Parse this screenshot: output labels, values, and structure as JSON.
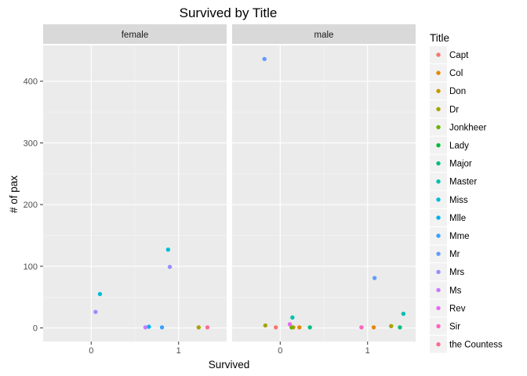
{
  "chart_data": {
    "type": "scatter",
    "title": "Survived by Title",
    "xlabel": "Survived",
    "ylabel": "# of pax",
    "xlim": [
      -0.55,
      1.55
    ],
    "ylim": [
      -22,
      458
    ],
    "x_ticks": [
      0,
      1
    ],
    "y_ticks": [
      0,
      100,
      200,
      300,
      400
    ],
    "grid": true,
    "facet_by": "sex",
    "facets": [
      "female",
      "male"
    ],
    "legend": {
      "title": "Title",
      "position": "right"
    },
    "series": [
      {
        "name": "Capt",
        "color": "#F8766D",
        "points": [
          {
            "facet": "male",
            "x": -0.05,
            "y": 1
          }
        ]
      },
      {
        "name": "Col",
        "color": "#E58700",
        "points": [
          {
            "facet": "male",
            "x": 0.22,
            "y": 1
          },
          {
            "facet": "male",
            "x": 1.07,
            "y": 1
          }
        ]
      },
      {
        "name": "Don",
        "color": "#C99800",
        "points": [
          {
            "facet": "male",
            "x": 0.15,
            "y": 1
          }
        ]
      },
      {
        "name": "Dr",
        "color": "#A3A500",
        "points": [
          {
            "facet": "female",
            "x": 1.23,
            "y": 1
          },
          {
            "facet": "male",
            "x": -0.17,
            "y": 4
          },
          {
            "facet": "male",
            "x": 1.27,
            "y": 3
          }
        ]
      },
      {
        "name": "Jonkheer",
        "color": "#6BB100",
        "points": [
          {
            "facet": "male",
            "x": 0.13,
            "y": 1
          }
        ]
      },
      {
        "name": "Lady",
        "color": "#00BA38",
        "points": []
      },
      {
        "name": "Major",
        "color": "#00BF7D",
        "points": [
          {
            "facet": "male",
            "x": 0.34,
            "y": 1
          },
          {
            "facet": "male",
            "x": 1.37,
            "y": 1
          }
        ]
      },
      {
        "name": "Master",
        "color": "#00C0AF",
        "points": [
          {
            "facet": "male",
            "x": 0.14,
            "y": 17
          },
          {
            "facet": "male",
            "x": 1.41,
            "y": 23
          }
        ]
      },
      {
        "name": "Miss",
        "color": "#00BCD8",
        "points": [
          {
            "facet": "female",
            "x": 0.1,
            "y": 55
          },
          {
            "facet": "female",
            "x": 0.88,
            "y": 127
          }
        ]
      },
      {
        "name": "Mlle",
        "color": "#00B0F6",
        "points": [
          {
            "facet": "female",
            "x": 0.66,
            "y": 2
          }
        ]
      },
      {
        "name": "Mme",
        "color": "#35A2FF",
        "points": [
          {
            "facet": "female",
            "x": 0.81,
            "y": 1
          }
        ]
      },
      {
        "name": "Mr",
        "color": "#619CFF",
        "points": [
          {
            "facet": "male",
            "x": -0.18,
            "y": 436
          },
          {
            "facet": "male",
            "x": 1.08,
            "y": 81
          }
        ]
      },
      {
        "name": "Mrs",
        "color": "#9590FF",
        "points": [
          {
            "facet": "female",
            "x": 0.05,
            "y": 26
          },
          {
            "facet": "female",
            "x": 0.9,
            "y": 99
          }
        ]
      },
      {
        "name": "Ms",
        "color": "#C77CFF",
        "points": [
          {
            "facet": "female",
            "x": 0.62,
            "y": 1
          }
        ]
      },
      {
        "name": "Rev",
        "color": "#E76BF3",
        "points": [
          {
            "facet": "male",
            "x": 0.11,
            "y": 6
          }
        ]
      },
      {
        "name": "Sir",
        "color": "#FF62BC",
        "points": [
          {
            "facet": "male",
            "x": 0.93,
            "y": 1
          }
        ]
      },
      {
        "name": "the Countess",
        "color": "#FF6C91",
        "points": [
          {
            "facet": "female",
            "x": 1.33,
            "y": 1
          }
        ]
      }
    ]
  }
}
